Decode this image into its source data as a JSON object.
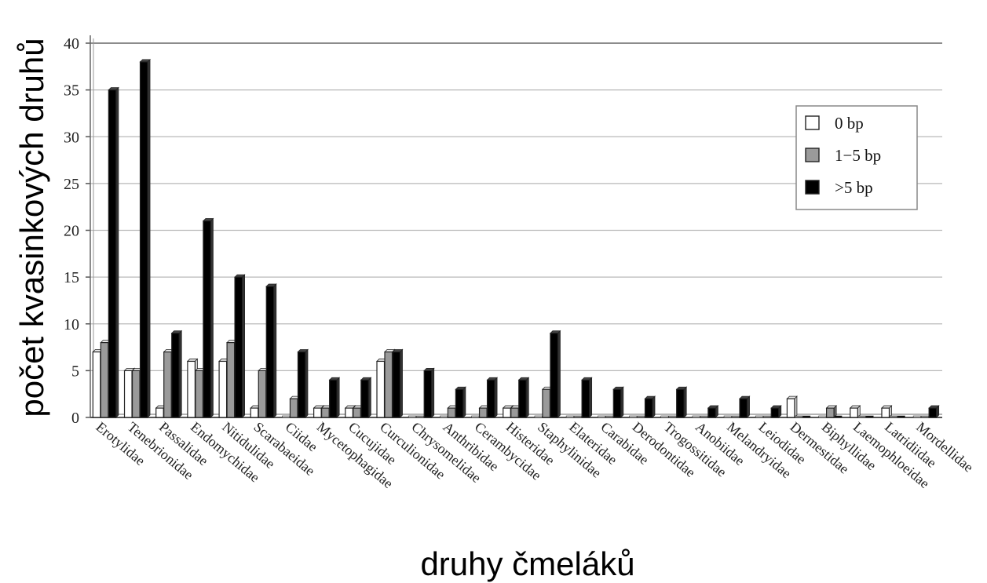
{
  "chart_data": {
    "type": "bar",
    "xlabel": "druhy čmeláků",
    "ylabel": "počet kvasinkových druhů",
    "ylim": [
      0,
      40
    ],
    "yticks": [
      0,
      5,
      10,
      15,
      20,
      25,
      30,
      35,
      40
    ],
    "ytick_labels": [
      "0",
      "5",
      "10",
      "15",
      "20",
      "25",
      "30",
      "35",
      "40"
    ],
    "grid": "horizontal",
    "legend_position": "right",
    "categories": [
      "Erotylidae",
      "Tenebrionidae",
      "Passalidae",
      "Endomychidae",
      "Nitidulidae",
      "Scarabaeidae",
      "Ciidae",
      "Mycetophagidae",
      "Cucujidae",
      "Curculionidae",
      "Chrysomelidae",
      "Anthribidae",
      "Cerambycidae",
      "Histeridae",
      "Staphylinidae",
      "Elateridae",
      "Carabidae",
      "Derodontidae",
      "Trogossitidae",
      "Anobiidae",
      "Melandryidae",
      "Leiodidae",
      "Dermestidae",
      "Biphyllidae",
      "Laemophloeidae",
      "Latridiidae",
      "Mordellidae"
    ],
    "series": [
      {
        "name": "0 bp",
        "color": "#ffffff",
        "values": [
          7,
          5,
          1,
          6,
          6,
          1,
          0,
          1,
          1,
          6,
          0,
          0,
          0,
          1,
          0,
          0,
          0,
          0,
          0,
          0,
          0,
          0,
          2,
          0,
          1,
          1,
          0
        ]
      },
      {
        "name": "1−5 bp",
        "color": "#9a9a9a",
        "values": [
          8,
          5,
          7,
          5,
          8,
          5,
          2,
          1,
          1,
          7,
          0,
          1,
          1,
          1,
          3,
          0,
          0,
          0,
          0,
          0,
          0,
          0,
          0,
          1,
          0,
          0,
          0
        ]
      },
      {
        "name": ">5 bp",
        "color": "#000000",
        "values": [
          35,
          38,
          9,
          21,
          15,
          14,
          7,
          4,
          4,
          7,
          5,
          3,
          4,
          4,
          9,
          4,
          3,
          2,
          3,
          1,
          2,
          1,
          0,
          0,
          0,
          0,
          1
        ]
      }
    ]
  }
}
